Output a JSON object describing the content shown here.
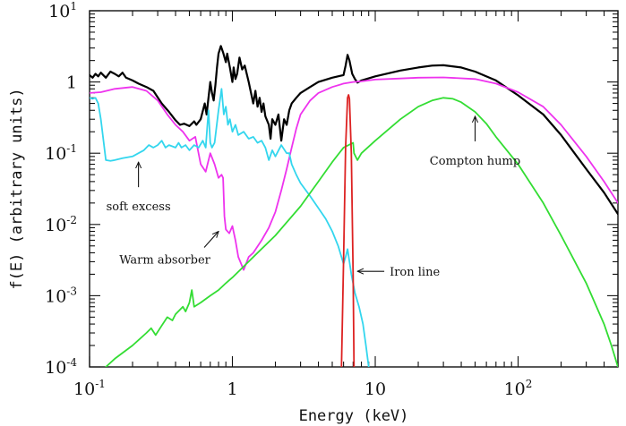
{
  "chart_data": {
    "type": "line",
    "title": "",
    "xlabel": "Energy (keV)",
    "ylabel": "f(E) (arbitrary units)",
    "xscale": "log",
    "yscale": "log",
    "xlim": [
      0.1,
      500
    ],
    "ylim": [
      0.0001,
      10
    ],
    "grid": false,
    "legend": "none",
    "x_ticks": [
      {
        "value": 0.1,
        "base": "10",
        "exp": "-1"
      },
      {
        "value": 1,
        "base": "1",
        "exp": ""
      },
      {
        "value": 10,
        "base": "10",
        "exp": ""
      },
      {
        "value": 100,
        "base": "10",
        "exp": "2"
      }
    ],
    "y_ticks": [
      {
        "value": 0.0001,
        "base": "10",
        "exp": "-4"
      },
      {
        "value": 0.001,
        "base": "10",
        "exp": "-3"
      },
      {
        "value": 0.01,
        "base": "10",
        "exp": "-2"
      },
      {
        "value": 0.1,
        "base": "10",
        "exp": "-1"
      },
      {
        "value": 1,
        "base": "1",
        "exp": ""
      },
      {
        "value": 10,
        "base": "10",
        "exp": "1"
      }
    ],
    "series": [
      {
        "color": "#000000",
        "points": [
          [
            0.1,
            1.25
          ],
          [
            0.105,
            1.15
          ],
          [
            0.11,
            1.3
          ],
          [
            0.115,
            1.2
          ],
          [
            0.12,
            1.35
          ],
          [
            0.13,
            1.15
          ],
          [
            0.14,
            1.4
          ],
          [
            0.15,
            1.3
          ],
          [
            0.16,
            1.2
          ],
          [
            0.17,
            1.35
          ],
          [
            0.18,
            1.15
          ],
          [
            0.2,
            1.05
          ],
          [
            0.22,
            0.95
          ],
          [
            0.25,
            0.85
          ],
          [
            0.28,
            0.75
          ],
          [
            0.32,
            0.5
          ],
          [
            0.36,
            0.38
          ],
          [
            0.4,
            0.29
          ],
          [
            0.43,
            0.25
          ],
          [
            0.46,
            0.26
          ],
          [
            0.5,
            0.24
          ],
          [
            0.54,
            0.28
          ],
          [
            0.56,
            0.25
          ],
          [
            0.6,
            0.3
          ],
          [
            0.64,
            0.5
          ],
          [
            0.66,
            0.35
          ],
          [
            0.68,
            0.6
          ],
          [
            0.7,
            1.0
          ],
          [
            0.72,
            0.7
          ],
          [
            0.74,
            0.55
          ],
          [
            0.76,
            0.9
          ],
          [
            0.78,
            1.6
          ],
          [
            0.8,
            2.5
          ],
          [
            0.83,
            3.2
          ],
          [
            0.86,
            2.6
          ],
          [
            0.9,
            1.9
          ],
          [
            0.92,
            2.5
          ],
          [
            0.96,
            1.6
          ],
          [
            1.0,
            1.0
          ],
          [
            1.02,
            1.6
          ],
          [
            1.05,
            1.1
          ],
          [
            1.08,
            1.3
          ],
          [
            1.12,
            2.2
          ],
          [
            1.17,
            1.5
          ],
          [
            1.22,
            1.7
          ],
          [
            1.3,
            1.0
          ],
          [
            1.35,
            0.7
          ],
          [
            1.4,
            0.5
          ],
          [
            1.45,
            0.75
          ],
          [
            1.5,
            0.45
          ],
          [
            1.55,
            0.6
          ],
          [
            1.6,
            0.38
          ],
          [
            1.65,
            0.5
          ],
          [
            1.7,
            0.33
          ],
          [
            1.8,
            0.25
          ],
          [
            1.85,
            0.16
          ],
          [
            1.9,
            0.3
          ],
          [
            2.0,
            0.25
          ],
          [
            2.1,
            0.35
          ],
          [
            2.2,
            0.15
          ],
          [
            2.3,
            0.3
          ],
          [
            2.4,
            0.25
          ],
          [
            2.5,
            0.4
          ],
          [
            2.6,
            0.5
          ],
          [
            2.8,
            0.6
          ],
          [
            3.0,
            0.7
          ],
          [
            3.5,
            0.85
          ],
          [
            4.0,
            1.0
          ],
          [
            5.0,
            1.15
          ],
          [
            6.0,
            1.25
          ],
          [
            6.2,
            1.7
          ],
          [
            6.4,
            2.4
          ],
          [
            6.6,
            2.0
          ],
          [
            6.9,
            1.3
          ],
          [
            7.2,
            1.1
          ],
          [
            7.5,
            0.98
          ],
          [
            8.0,
            1.05
          ],
          [
            10,
            1.2
          ],
          [
            15,
            1.45
          ],
          [
            20,
            1.6
          ],
          [
            25,
            1.7
          ],
          [
            30,
            1.72
          ],
          [
            40,
            1.6
          ],
          [
            50,
            1.4
          ],
          [
            70,
            1.05
          ],
          [
            100,
            0.65
          ],
          [
            150,
            0.35
          ],
          [
            200,
            0.18
          ],
          [
            300,
            0.06
          ],
          [
            400,
            0.028
          ],
          [
            500,
            0.014
          ]
        ]
      },
      {
        "color": "#ee33ee",
        "points": [
          [
            0.1,
            0.7
          ],
          [
            0.12,
            0.72
          ],
          [
            0.15,
            0.8
          ],
          [
            0.2,
            0.85
          ],
          [
            0.25,
            0.75
          ],
          [
            0.3,
            0.55
          ],
          [
            0.35,
            0.35
          ],
          [
            0.4,
            0.25
          ],
          [
            0.45,
            0.2
          ],
          [
            0.5,
            0.15
          ],
          [
            0.55,
            0.17
          ],
          [
            0.6,
            0.07
          ],
          [
            0.65,
            0.055
          ],
          [
            0.7,
            0.1
          ],
          [
            0.75,
            0.07
          ],
          [
            0.8,
            0.045
          ],
          [
            0.84,
            0.05
          ],
          [
            0.86,
            0.045
          ],
          [
            0.88,
            0.013
          ],
          [
            0.9,
            0.0085
          ],
          [
            0.95,
            0.0075
          ],
          [
            1.0,
            0.0095
          ],
          [
            1.05,
            0.006
          ],
          [
            1.1,
            0.0035
          ],
          [
            1.2,
            0.0023
          ],
          [
            1.3,
            0.0035
          ],
          [
            1.4,
            0.004
          ],
          [
            1.6,
            0.006
          ],
          [
            1.8,
            0.009
          ],
          [
            2.0,
            0.015
          ],
          [
            2.2,
            0.03
          ],
          [
            2.4,
            0.06
          ],
          [
            2.6,
            0.12
          ],
          [
            2.8,
            0.22
          ],
          [
            3.0,
            0.35
          ],
          [
            3.5,
            0.55
          ],
          [
            4.0,
            0.7
          ],
          [
            5.0,
            0.85
          ],
          [
            6.0,
            0.95
          ],
          [
            7.0,
            1.0
          ],
          [
            8.0,
            1.02
          ],
          [
            10,
            1.08
          ],
          [
            15,
            1.12
          ],
          [
            20,
            1.15
          ],
          [
            30,
            1.16
          ],
          [
            50,
            1.1
          ],
          [
            70,
            0.95
          ],
          [
            100,
            0.72
          ],
          [
            150,
            0.45
          ],
          [
            200,
            0.25
          ],
          [
            300,
            0.09
          ],
          [
            400,
            0.04
          ],
          [
            500,
            0.02
          ]
        ]
      },
      {
        "color": "#33d6ee",
        "points": [
          [
            0.1,
            0.6
          ],
          [
            0.105,
            0.58
          ],
          [
            0.11,
            0.6
          ],
          [
            0.115,
            0.5
          ],
          [
            0.12,
            0.3
          ],
          [
            0.13,
            0.08
          ],
          [
            0.14,
            0.078
          ],
          [
            0.15,
            0.08
          ],
          [
            0.17,
            0.085
          ],
          [
            0.2,
            0.09
          ],
          [
            0.22,
            0.1
          ],
          [
            0.24,
            0.11
          ],
          [
            0.26,
            0.13
          ],
          [
            0.28,
            0.12
          ],
          [
            0.3,
            0.13
          ],
          [
            0.32,
            0.15
          ],
          [
            0.34,
            0.12
          ],
          [
            0.36,
            0.13
          ],
          [
            0.4,
            0.12
          ],
          [
            0.42,
            0.14
          ],
          [
            0.44,
            0.12
          ],
          [
            0.47,
            0.13
          ],
          [
            0.5,
            0.11
          ],
          [
            0.54,
            0.13
          ],
          [
            0.58,
            0.12
          ],
          [
            0.62,
            0.15
          ],
          [
            0.65,
            0.12
          ],
          [
            0.68,
            0.4
          ],
          [
            0.7,
            0.14
          ],
          [
            0.72,
            0.12
          ],
          [
            0.75,
            0.14
          ],
          [
            0.8,
            0.4
          ],
          [
            0.84,
            0.8
          ],
          [
            0.87,
            0.35
          ],
          [
            0.9,
            0.45
          ],
          [
            0.93,
            0.25
          ],
          [
            0.96,
            0.3
          ],
          [
            1.0,
            0.2
          ],
          [
            1.05,
            0.25
          ],
          [
            1.1,
            0.18
          ],
          [
            1.2,
            0.2
          ],
          [
            1.3,
            0.16
          ],
          [
            1.4,
            0.17
          ],
          [
            1.5,
            0.14
          ],
          [
            1.6,
            0.15
          ],
          [
            1.7,
            0.12
          ],
          [
            1.8,
            0.08
          ],
          [
            1.9,
            0.11
          ],
          [
            2.0,
            0.09
          ],
          [
            2.2,
            0.13
          ],
          [
            2.4,
            0.1
          ],
          [
            2.5,
            0.1
          ],
          [
            2.6,
            0.07
          ],
          [
            2.8,
            0.05
          ],
          [
            3.0,
            0.038
          ],
          [
            3.5,
            0.025
          ],
          [
            4.0,
            0.017
          ],
          [
            4.5,
            0.012
          ],
          [
            5.0,
            0.008
          ],
          [
            5.5,
            0.005
          ],
          [
            6.0,
            0.0028
          ],
          [
            6.2,
            0.0035
          ],
          [
            6.4,
            0.0045
          ],
          [
            6.6,
            0.003
          ],
          [
            6.8,
            0.002
          ],
          [
            7.2,
            0.0011
          ],
          [
            7.7,
            0.0007
          ],
          [
            8.2,
            0.0004
          ],
          [
            8.6,
            0.0002
          ],
          [
            9.0,
            0.0001
          ]
        ]
      },
      {
        "color": "#33dd33",
        "points": [
          [
            0.13,
            0.0001
          ],
          [
            0.15,
            0.00013
          ],
          [
            0.2,
            0.0002
          ],
          [
            0.25,
            0.0003
          ],
          [
            0.27,
            0.00035
          ],
          [
            0.29,
            0.00028
          ],
          [
            0.32,
            0.00038
          ],
          [
            0.35,
            0.0005
          ],
          [
            0.38,
            0.00045
          ],
          [
            0.4,
            0.00055
          ],
          [
            0.45,
            0.0007
          ],
          [
            0.47,
            0.0006
          ],
          [
            0.5,
            0.0008
          ],
          [
            0.52,
            0.0012
          ],
          [
            0.54,
            0.0007
          ],
          [
            0.6,
            0.0008
          ],
          [
            0.7,
            0.001
          ],
          [
            0.8,
            0.0012
          ],
          [
            0.9,
            0.0015
          ],
          [
            1.0,
            0.0018
          ],
          [
            1.5,
            0.004
          ],
          [
            2.0,
            0.007
          ],
          [
            3.0,
            0.018
          ],
          [
            4.0,
            0.04
          ],
          [
            5.0,
            0.075
          ],
          [
            6.0,
            0.12
          ],
          [
            7.0,
            0.14
          ],
          [
            7.1,
            0.1
          ],
          [
            7.5,
            0.08
          ],
          [
            8.0,
            0.1
          ],
          [
            10,
            0.15
          ],
          [
            15,
            0.3
          ],
          [
            20,
            0.45
          ],
          [
            25,
            0.55
          ],
          [
            30,
            0.6
          ],
          [
            35,
            0.58
          ],
          [
            40,
            0.52
          ],
          [
            50,
            0.38
          ],
          [
            60,
            0.26
          ],
          [
            70,
            0.17
          ],
          [
            100,
            0.07
          ],
          [
            150,
            0.02
          ],
          [
            200,
            0.007
          ],
          [
            300,
            0.0015
          ],
          [
            400,
            0.0004
          ],
          [
            450,
            0.0002
          ],
          [
            500,
            0.0001
          ]
        ]
      },
      {
        "color": "#dd2222",
        "points": [
          [
            5.8,
            0.0001
          ],
          [
            6.0,
            0.003
          ],
          [
            6.2,
            0.12
          ],
          [
            6.4,
            0.6
          ],
          [
            6.5,
            0.66
          ],
          [
            6.6,
            0.58
          ],
          [
            6.8,
            0.1
          ],
          [
            7.0,
            0.002
          ],
          [
            7.1,
            0.0001
          ]
        ]
      }
    ],
    "annotations": [
      {
        "text": "soft excess",
        "arrow_to": [
          0.22,
          0.075
        ],
        "arrow_dir": "up"
      },
      {
        "text": "Warm absorber",
        "arrow_to": [
          0.8,
          0.008
        ],
        "arrow_dir": "up-right"
      },
      {
        "text": "Iron line",
        "arrow_to": [
          7.5,
          0.0022
        ],
        "arrow_dir": "left"
      },
      {
        "text": "Compton hump",
        "arrow_to": [
          50,
          0.33
        ],
        "arrow_dir": "up"
      }
    ]
  }
}
